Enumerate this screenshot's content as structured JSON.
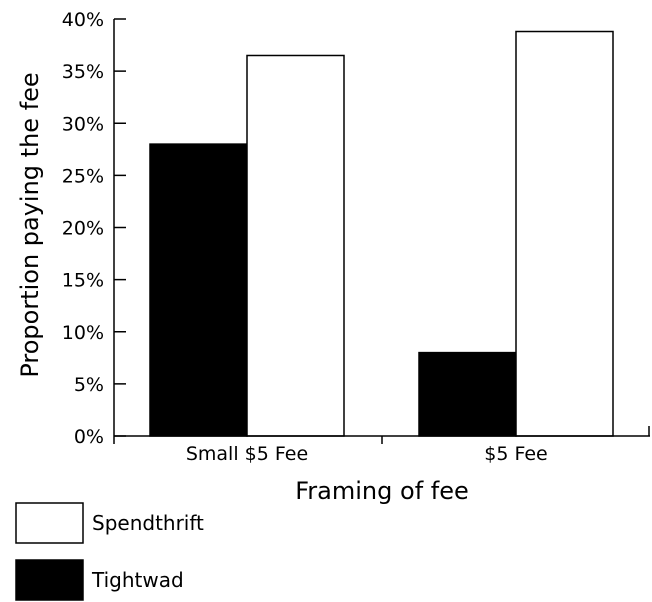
{
  "chart_data": {
    "type": "bar",
    "title": "",
    "xlabel": "Framing of fee",
    "ylabel": "Proportion paying the fee",
    "categories": [
      "Small $5 Fee",
      "$5 Fee"
    ],
    "series": [
      {
        "name": "Tightwad",
        "color": "#000000",
        "values": [
          28,
          8
        ]
      },
      {
        "name": "Spendthrift",
        "color": "#ffffff",
        "values": [
          36.5,
          38.8
        ]
      }
    ],
    "ylim": [
      0,
      40
    ],
    "yticks": [
      0,
      5,
      10,
      15,
      20,
      25,
      30,
      35,
      40
    ],
    "ytick_labels": [
      "0%",
      "5%",
      "10%",
      "15%",
      "20%",
      "25%",
      "30%",
      "35%",
      "40%"
    ],
    "legend": {
      "placement": "bottom-left",
      "items": [
        {
          "label": "Spendthrift",
          "color": "#ffffff"
        },
        {
          "label": "Tightwad",
          "color": "#000000"
        }
      ]
    },
    "grid": false
  }
}
